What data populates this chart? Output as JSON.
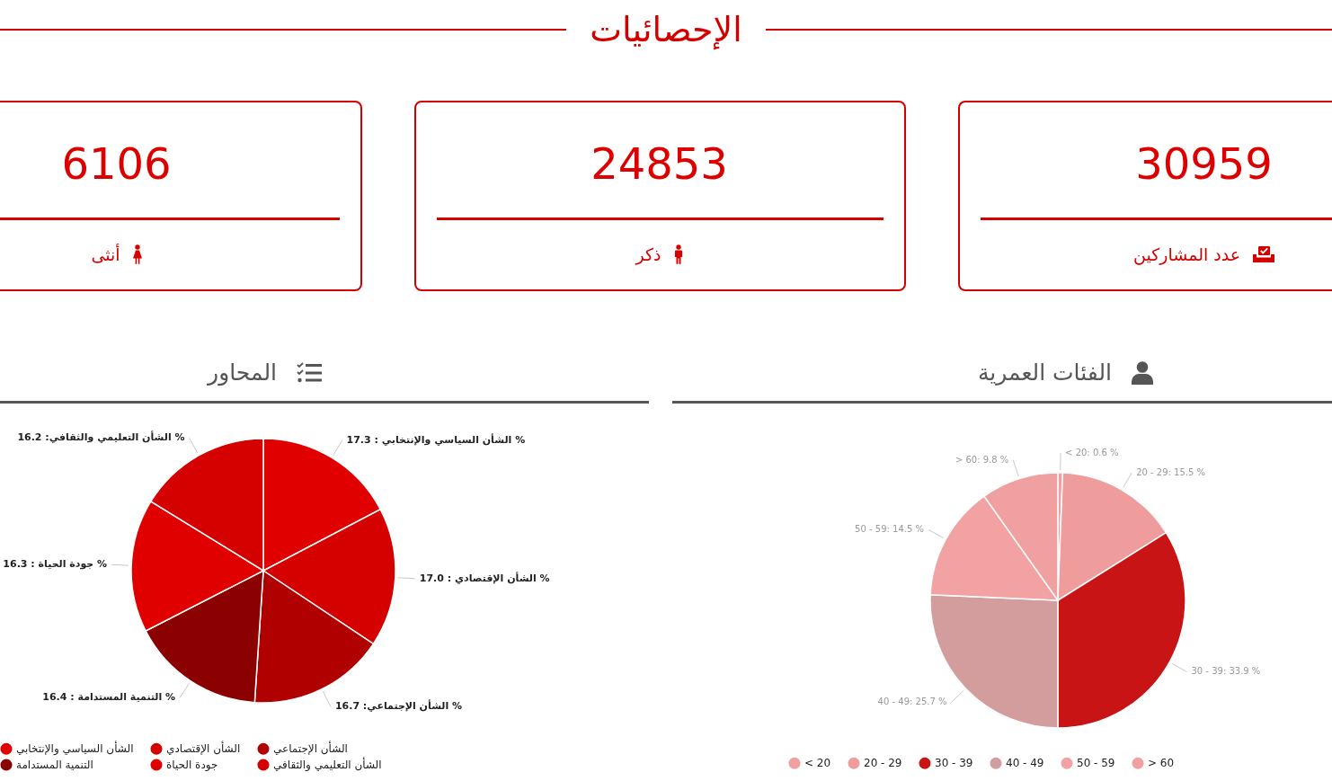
{
  "chart_data": [
    {
      "type": "other",
      "title": "الإحصائيات",
      "annotations": [
        "30959",
        "عدد المشاركين",
        "24853",
        "ذكر",
        "6106",
        "أنثى"
      ]
    },
    {
      "type": "pie",
      "title": "المحاور",
      "categories": [
        "الشأن السياسي والإنتخابي",
        "الشأن الإقتصادي",
        "الشأن الإجتماعي",
        "التنمية المستدامة",
        "جودة الحياة",
        "الشأن التعليمي والثقافي"
      ],
      "values": [
        17.3,
        17.0,
        16.7,
        16.4,
        16.3,
        16.2
      ],
      "colors": [
        "#e00000",
        "#d50000",
        "#b00000",
        "#8b0000",
        "#e00000",
        "#d50000"
      ],
      "value_labels": [
        "الشأن السياسي والإنتخابي : 17.3 %",
        "الشأن الإقتصادي : 17.0 %",
        "الشأن الإجتماعي: 16.7 %",
        "التنمية المستدامة : 16.4 %",
        "جودة الحياة : 16.3 %",
        "الشأن التعليمي والثقافي: 16.2 %"
      ],
      "legend": "bottom"
    },
    {
      "type": "pie",
      "title": "الفئات العمرية",
      "categories": [
        "< 20",
        "20 - 29",
        "30 - 39",
        "40 - 49",
        "50 - 59",
        "> 60"
      ],
      "values": [
        0.6,
        15.5,
        33.9,
        25.7,
        14.5,
        9.8
      ],
      "colors": [
        "#f0a0a0",
        "#ef9c9c",
        "#c81414",
        "#d39d9d",
        "#f2a2a2",
        "#f0a0a0"
      ],
      "value_labels": [
        "< 20: 0.6 %",
        "20 - 29: 15.5 %",
        "30 - 39: 33.9 %",
        "40 - 49: 25.7 %",
        "50 - 59: 14.5 %",
        "> 60: 9.8 %"
      ],
      "legend": "bottom"
    }
  ]
}
